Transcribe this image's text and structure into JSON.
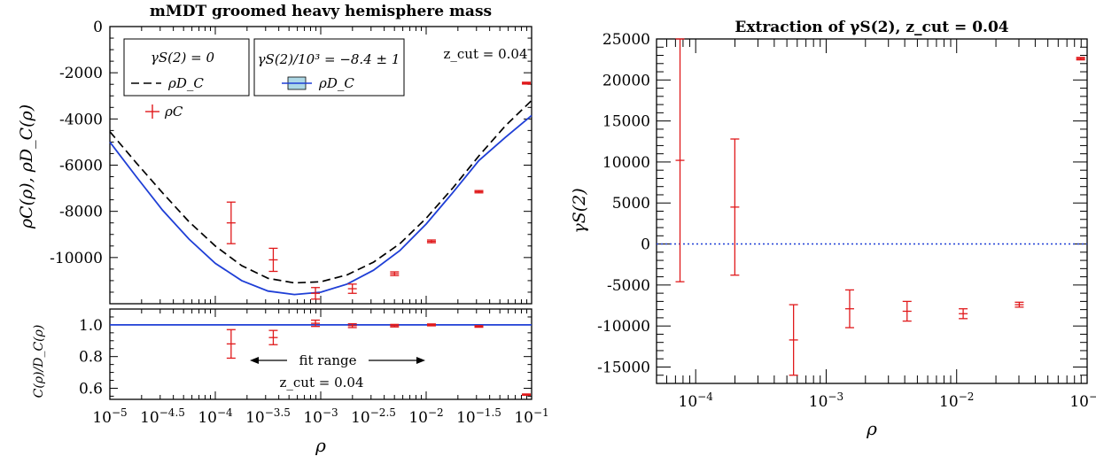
{
  "colors": {
    "fit_curve": "#1f3fd6",
    "pure_curve": "#000000",
    "data_points": "#e0191b",
    "band_fill": "#add8e6",
    "zero_line": "#1f3fd6"
  },
  "chart_data": [
    {
      "type": "scatter",
      "title": "mMDT groomed heavy hemisphere mass",
      "xlabel": "ρ",
      "ylabel": "ρC(ρ), ρD_C(ρ)",
      "xscale": "log",
      "xlim_log10": [
        -5,
        -1
      ],
      "ylim": [
        -12000,
        0
      ],
      "yticks": [
        0,
        -2000,
        -4000,
        -6000,
        -8000,
        -10000
      ],
      "ytick_labels": [
        "0",
        "-2000",
        "-4000",
        "-6000",
        "-8000",
        "-10000"
      ],
      "legend": [
        {
          "header": "γS(2) = 0",
          "entry": "ρD_C",
          "style": "dashed-black"
        },
        {
          "header": "γS(2)/10³ = −8.4 ± 1",
          "entry": "ρD_C",
          "style": "blue-band"
        },
        {
          "entry": "ρC",
          "style": "red-cross"
        }
      ],
      "annotation": "z_cut = 0.04",
      "series": [
        {
          "name": "ρC",
          "log10_x": [
            -3.85,
            -3.45,
            -3.05,
            -2.7,
            -2.3,
            -1.95,
            -1.5,
            -1.05
          ],
          "y": [
            -8500,
            -10100,
            -11550,
            -11350,
            -10700,
            -9300,
            -7150,
            -2450
          ],
          "yerr": [
            900,
            500,
            250,
            200,
            80,
            60,
            50,
            40
          ]
        },
        {
          "name": "ρD_C (γS(2) = 0)",
          "log10_x": [
            -5,
            -4.75,
            -4.5,
            -4.25,
            -4,
            -3.75,
            -3.5,
            -3.25,
            -3,
            -2.75,
            -2.5,
            -2.25,
            -2,
            -1.75,
            -1.5,
            -1.25,
            -1
          ],
          "y": [
            -4550,
            -5900,
            -7200,
            -8450,
            -9500,
            -10350,
            -10900,
            -11100,
            -11050,
            -10750,
            -10200,
            -9400,
            -8300,
            -7000,
            -5600,
            -4300,
            -3200
          ]
        },
        {
          "name": "ρD_C (γS(2)/10³ = −8.4 ± 1)",
          "log10_x": [
            -5,
            -4.75,
            -4.5,
            -4.25,
            -4,
            -3.75,
            -3.5,
            -3.25,
            -3,
            -2.75,
            -2.5,
            -2.25,
            -2,
            -1.75,
            -1.5,
            -1.25,
            -1
          ],
          "y": [
            -5000,
            -6500,
            -7950,
            -9200,
            -10250,
            -11000,
            -11450,
            -11600,
            -11500,
            -11150,
            -10550,
            -9700,
            -8550,
            -7200,
            -5800,
            -4800,
            -3850
          ]
        }
      ]
    },
    {
      "type": "scatter",
      "xlabel": "ρ",
      "ylabel": "C(ρ)/D_C(ρ)",
      "xscale": "log",
      "xlim_log10": [
        -5,
        -1
      ],
      "xtick_labels": [
        "10^−5",
        "10^−4.5",
        "10^−4",
        "10^−3.5",
        "10^−3",
        "10^−2.5",
        "10^−2",
        "10^−1.5",
        "10^−1"
      ],
      "ylim": [
        0.53,
        1.1
      ],
      "yticks": [
        1.0,
        0.8,
        0.6
      ],
      "ytick_labels": [
        "1.0",
        "0.8",
        "0.6"
      ],
      "annotations": [
        "fit range",
        "z_cut = 0.04"
      ],
      "series": [
        {
          "name": "C/D_C",
          "log10_x": [
            -3.85,
            -3.45,
            -3.05,
            -2.7,
            -2.3,
            -1.95,
            -1.5,
            -1.05
          ],
          "y": [
            0.88,
            0.92,
            1.01,
            0.995,
            0.995,
            1.0,
            0.99,
            0.56
          ],
          "yerr": [
            0.09,
            0.045,
            0.02,
            0.012,
            0.008,
            0.006,
            0.005,
            0.004
          ]
        },
        {
          "name": "reference",
          "y_constant": 1.0
        }
      ]
    },
    {
      "type": "scatter",
      "title": "Extraction of γS(2), z_cut = 0.04",
      "xlabel": "ρ",
      "ylabel": "γS(2)",
      "xscale": "log",
      "xlim_log10": [
        -4.3,
        -1
      ],
      "xtick_labels": [
        "10^−4",
        "10^−3",
        "10^−2",
        "10^−1"
      ],
      "ylim": [
        -17000,
        25000
      ],
      "yticks": [
        25000,
        20000,
        15000,
        10000,
        5000,
        0,
        -5000,
        -10000,
        -15000
      ],
      "ytick_labels": [
        "25000",
        "20000",
        "15000",
        "10000",
        "5000",
        "0",
        "-5000",
        "-10000",
        "-15000"
      ],
      "series": [
        {
          "name": "γS(2)",
          "log10_x": [
            -4.12,
            -3.7,
            -3.25,
            -2.82,
            -2.38,
            -1.95,
            -1.52,
            -1.05
          ],
          "y": [
            10200,
            4500,
            -11700,
            -7900,
            -8200,
            -8500,
            -7400,
            22600
          ],
          "yerr": [
            14800,
            8300,
            4300,
            2300,
            1200,
            600,
            300,
            150
          ]
        },
        {
          "name": "zero",
          "y_constant": 0
        }
      ]
    }
  ]
}
